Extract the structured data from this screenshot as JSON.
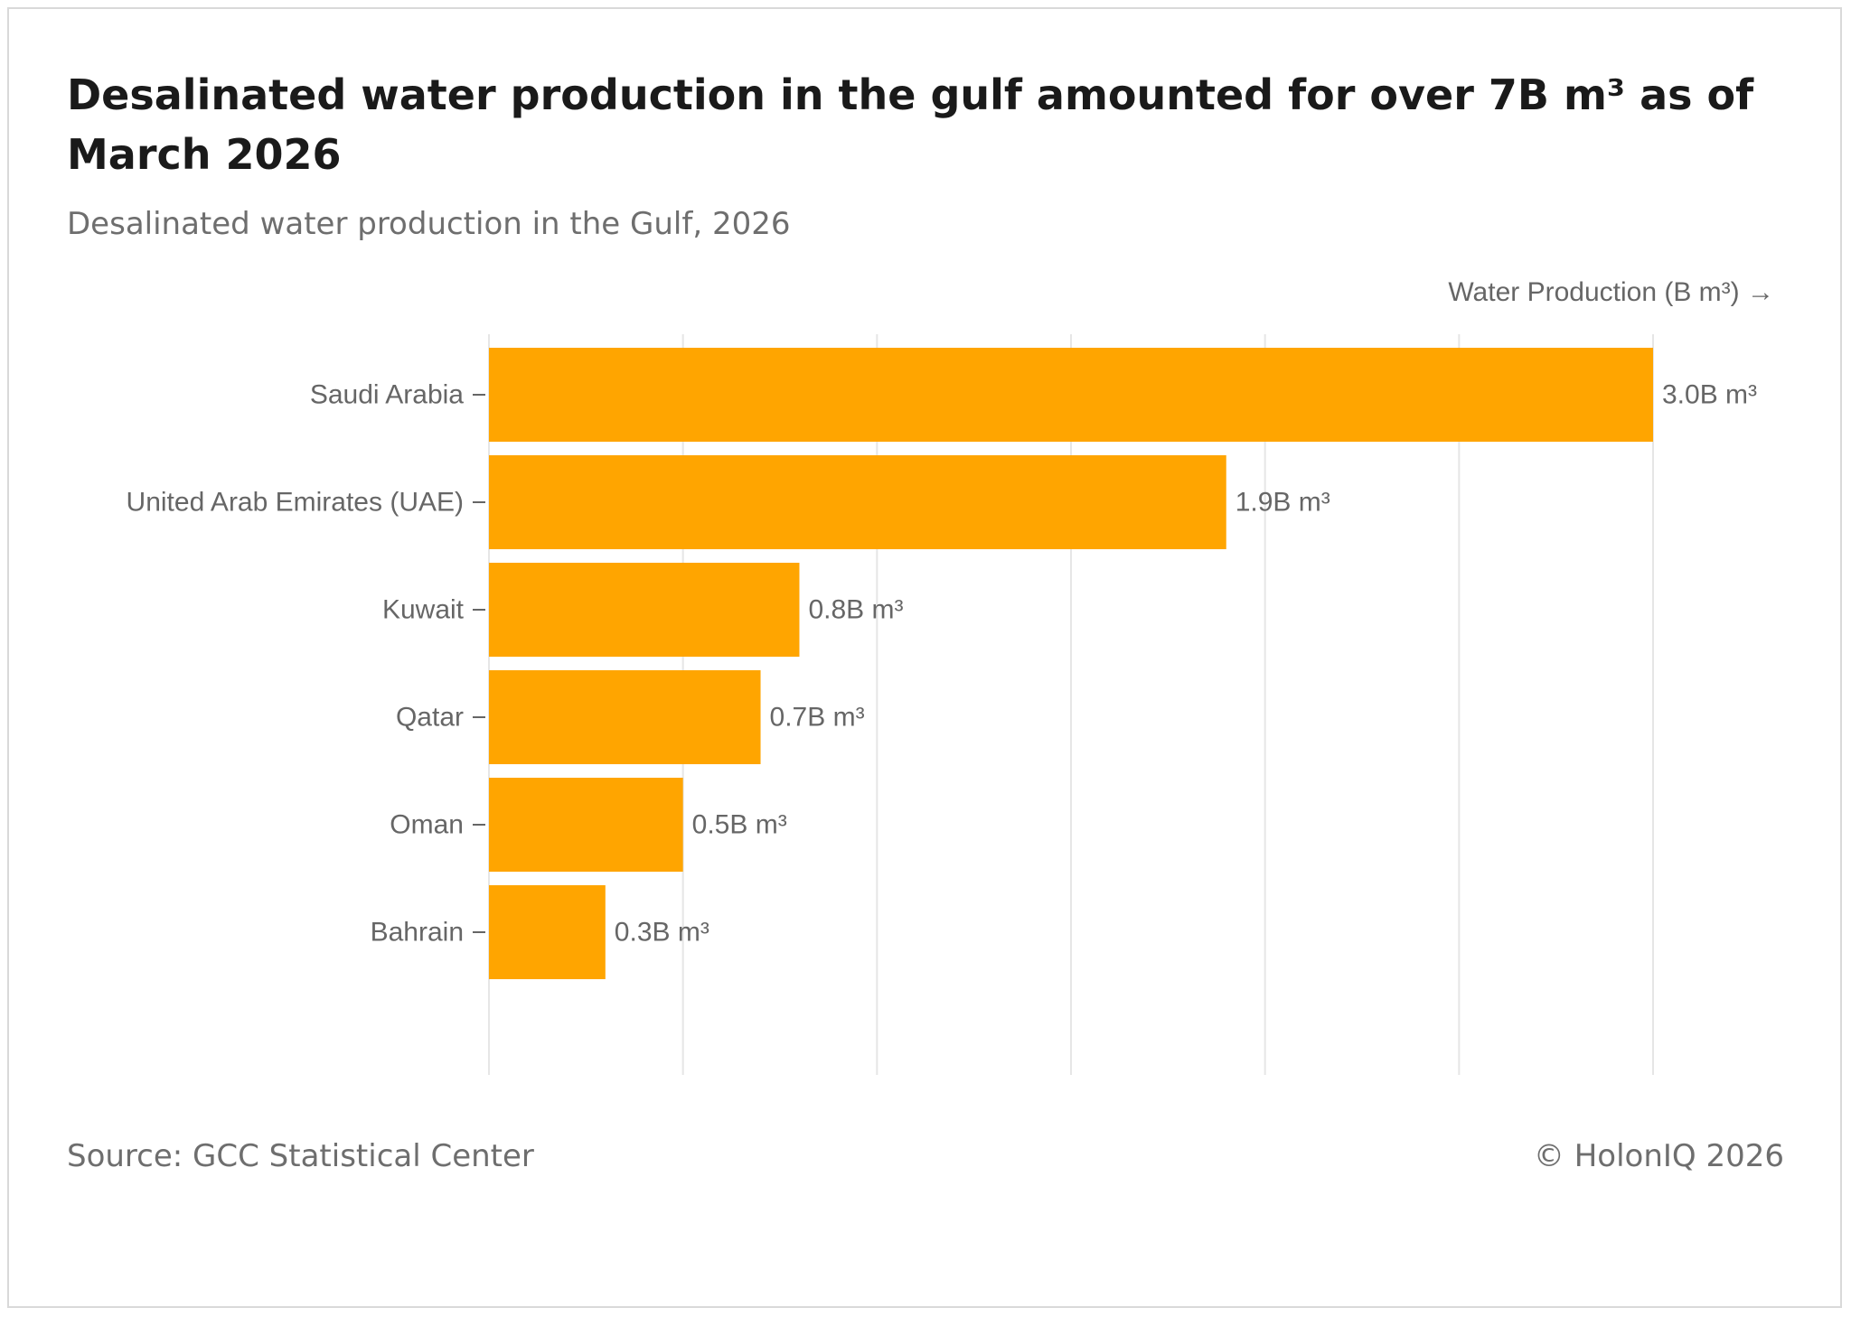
{
  "header": {
    "title": "Desalinated water production in the gulf amounted for over 7B m³ as of March 2026",
    "subtitle": "Desalinated water production in the Gulf, 2026"
  },
  "footer": {
    "source": "Source: GCC Statistical Center",
    "copyright": "© HolonIQ 2026"
  },
  "colors": {
    "bar": "#FFA500",
    "grid": "#e6e6e6",
    "tick_text": "#666666"
  },
  "chart_data": {
    "type": "bar",
    "orientation": "horizontal",
    "title": "Desalinated water production in the gulf amounted for over 7B m³ as of March 2026",
    "subtitle": "Desalinated water production in the Gulf, 2026",
    "xlabel": "Water Production (B m³) →",
    "ylabel": "",
    "xlim": [
      0,
      3.0
    ],
    "grid_step": 0.5,
    "grid": true,
    "legend": "none",
    "categories": [
      "Saudi Arabia",
      "United Arab Emirates (UAE)",
      "Kuwait",
      "Qatar",
      "Oman",
      "Bahrain"
    ],
    "values": [
      3.0,
      1.9,
      0.8,
      0.7,
      0.5,
      0.3
    ],
    "value_labels": [
      "3.0B m³",
      "1.9B m³",
      "0.8B m³",
      "0.7B m³",
      "0.5B m³",
      "0.3B m³"
    ]
  }
}
